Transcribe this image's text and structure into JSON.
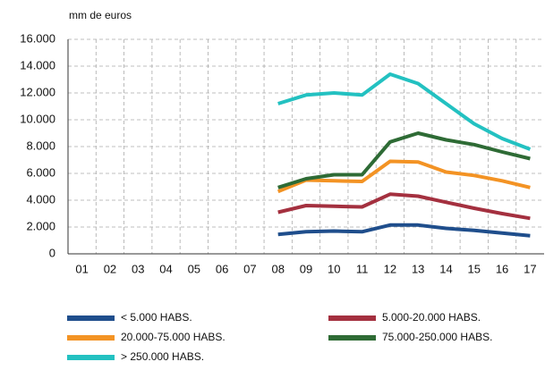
{
  "chart_data": {
    "type": "line",
    "y_axis_label": "mm de euros",
    "categories": [
      "01",
      "02",
      "03",
      "04",
      "05",
      "06",
      "07",
      "08",
      "09",
      "10",
      "11",
      "12",
      "13",
      "14",
      "15",
      "16",
      "17"
    ],
    "ylim": [
      0,
      16000
    ],
    "yticks": [
      0,
      {
        "value": 2000,
        "label": "2.000"
      },
      {
        "value": 4000,
        "label": "4.000"
      },
      {
        "value": 6000,
        "label": "6.000"
      },
      {
        "value": 8000,
        "label": "8.000"
      },
      {
        "value": 10000,
        "label": "10.000"
      },
      {
        "value": 12000,
        "label": "12.000"
      },
      {
        "value": 14000,
        "label": "14.000"
      },
      {
        "value": 16000,
        "label": "16.000"
      }
    ],
    "grid": true,
    "series": [
      {
        "name": "< 5.000 HABS.",
        "color": "#1f4e8c",
        "values": [
          null,
          null,
          null,
          null,
          null,
          null,
          null,
          1450,
          1650,
          1700,
          1650,
          2150,
          2150,
          1900,
          1750,
          1550,
          1350
        ]
      },
      {
        "name": "5.000-20.000 HABS.",
        "color": "#a4303f",
        "values": [
          null,
          null,
          null,
          null,
          null,
          null,
          null,
          3100,
          3600,
          3550,
          3500,
          4450,
          4300,
          3850,
          3400,
          3000,
          2650
        ]
      },
      {
        "name": "20.000-75.000 HABS.",
        "color": "#f39324",
        "values": [
          null,
          null,
          null,
          null,
          null,
          null,
          null,
          4650,
          5500,
          5450,
          5400,
          6900,
          6850,
          6100,
          5850,
          5450,
          4950
        ]
      },
      {
        "name": "75.000-250.000 HABS.",
        "color": "#2e6b35",
        "values": [
          null,
          null,
          null,
          null,
          null,
          null,
          null,
          4950,
          5600,
          5900,
          5900,
          8350,
          9000,
          8500,
          8150,
          7600,
          7100
        ]
      },
      {
        "name": "> 250.000 HABS.",
        "color": "#23c1c1",
        "values": [
          null,
          null,
          null,
          null,
          null,
          null,
          null,
          11200,
          11850,
          12000,
          11850,
          13400,
          12700,
          11200,
          9700,
          8600,
          7800
        ]
      }
    ]
  }
}
